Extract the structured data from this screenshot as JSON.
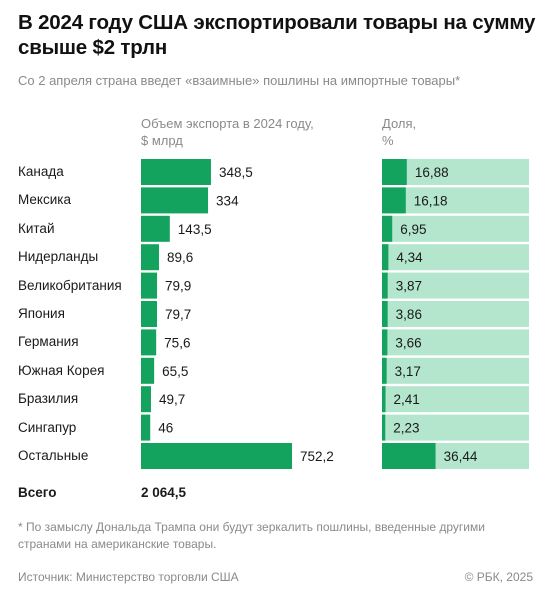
{
  "header": {
    "title": "В 2024 году США экспортировали товары на сумму свыше $2 трлн",
    "subtitle": "Со 2 апреля страна введет «взаимные» пошлины на импортные товары*"
  },
  "columns": {
    "export_head_line1": "Объем экспорта в 2024 году,",
    "export_head_line2": "$ млрд",
    "share_head_line1": "Доля,",
    "share_head_line2": "%"
  },
  "total": {
    "label": "Всего",
    "value": "2 064,5"
  },
  "footer": {
    "footnote": "* По замыслу Дональда Трампа они будут зеркалить пошлины, введенные другими странами на американские товары.",
    "source": "Источник: Министерство торговли США",
    "copyright": "© РБК, 2025"
  },
  "colors": {
    "bar": "#13a35e",
    "share_track": "#b4e6cd",
    "text": "#1a1a1a",
    "muted": "#8a8a8a"
  },
  "chart_data": {
    "type": "bar",
    "title": "В 2024 году США экспортировали товары на сумму свыше $2 трлн",
    "categories": [
      "Канада",
      "Мексика",
      "Китай",
      "Нидерланды",
      "Великобритания",
      "Япония",
      "Германия",
      "Южная Корея",
      "Бразилия",
      "Сингапур",
      "Остальные"
    ],
    "series": [
      {
        "name": "Объем экспорта в 2024 году, $ млрд",
        "values": [
          348.5,
          334,
          143.5,
          89.6,
          79.9,
          79.7,
          75.6,
          65.5,
          49.7,
          46,
          752.2
        ],
        "labels": [
          "348,5",
          "334",
          "143,5",
          "89,6",
          "79,9",
          "79,7",
          "75,6",
          "65,5",
          "49,7",
          "46",
          "752,2"
        ]
      },
      {
        "name": "Доля, %",
        "values": [
          16.88,
          16.18,
          6.95,
          4.34,
          3.87,
          3.86,
          3.66,
          3.17,
          2.41,
          2.23,
          36.44
        ],
        "labels": [
          "16,88",
          "16,18",
          "6,95",
          "4,34",
          "3,87",
          "3,86",
          "3,66",
          "3,17",
          "2,41",
          "2,23",
          "36,44"
        ],
        "max": 100
      }
    ],
    "orientation": "horizontal",
    "grid": false
  }
}
